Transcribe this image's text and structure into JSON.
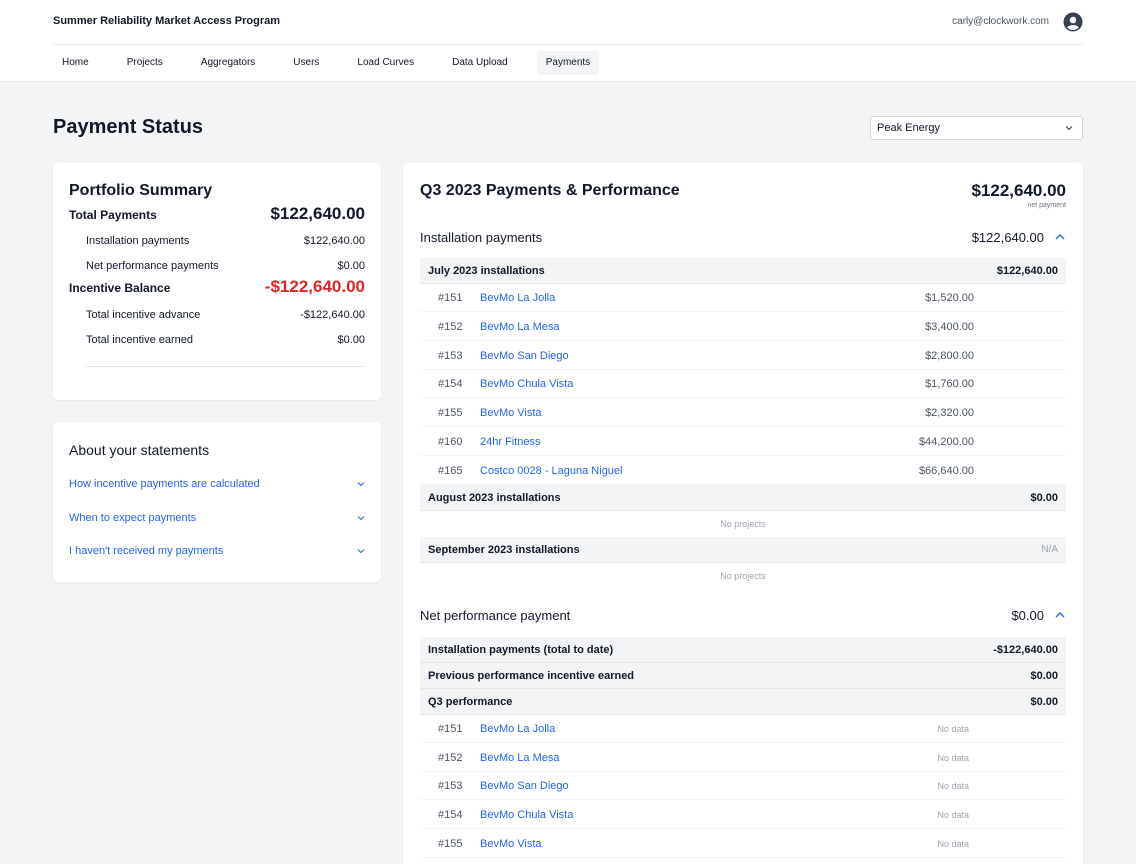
{
  "header": {
    "app_title": "Summer Reliability Market Access Program",
    "user_email": "carly@clockwork.com",
    "nav": [
      "Home",
      "Projects",
      "Aggregators",
      "Users",
      "Load Curves",
      "Data Upload",
      "Payments"
    ],
    "active_nav": "Payments"
  },
  "page": {
    "title": "Payment Status",
    "aggregator_select": "Peak Energy"
  },
  "portfolio": {
    "title": "Portfolio Summary",
    "total_payments_label": "Total Payments",
    "total_payments_value": "$122,640.00",
    "installation_label": "Installation payments",
    "installation_value": "$122,640.00",
    "net_perf_label": "Net performance payments",
    "net_perf_value": "$0.00",
    "incentive_balance_label": "Incentive Balance",
    "incentive_balance_value": "-$122,640.00",
    "advance_label": "Total incentive advance",
    "advance_value": "-$122,640.00",
    "earned_label": "Total incentive earned",
    "earned_value": "$0.00"
  },
  "about": {
    "title": "About your statements",
    "questions": [
      "How incentive payments are calculated",
      "When to expect payments",
      "I haven't received my payments"
    ]
  },
  "main": {
    "title": "Q3 2023 Payments & Performance",
    "net_total": "$122,640.00",
    "net_total_caption": "net payment",
    "installation": {
      "title": "Installation payments",
      "total": "$122,640.00",
      "groups": [
        {
          "label": "July 2023 installations",
          "value": "$122,640.00",
          "items": [
            {
              "num": "#151",
              "name": "BevMo La Jolla",
              "amount": "$1,520.00"
            },
            {
              "num": "#152",
              "name": "BevMo La Mesa",
              "amount": "$3,400.00"
            },
            {
              "num": "#153",
              "name": "BevMo San Diego",
              "amount": "$2,800.00"
            },
            {
              "num": "#154",
              "name": "BevMo Chula Vista",
              "amount": "$1,760.00"
            },
            {
              "num": "#155",
              "name": "BevMo Vista",
              "amount": "$2,320.00"
            },
            {
              "num": "#160",
              "name": "24hr Fitness",
              "amount": "$44,200.00"
            },
            {
              "num": "#165",
              "name": "Costco 0028 - Laguna Niguel",
              "amount": "$66,640.00"
            }
          ]
        },
        {
          "label": "August 2023 installations",
          "value": "$0.00",
          "empty": "No projects"
        },
        {
          "label": "September 2023 installations",
          "value": "N/A",
          "empty": "No projects"
        }
      ]
    },
    "performance": {
      "title": "Net performance payment",
      "total": "$0.00",
      "rows": [
        {
          "label": "Installation payments (total to date)",
          "value": "-$122,640.00"
        },
        {
          "label": "Previous performance incentive earned",
          "value": "$0.00"
        },
        {
          "label": "Q3 performance",
          "value": "$0.00"
        }
      ],
      "items": [
        {
          "num": "#151",
          "name": "BevMo La Jolla",
          "status": "No data"
        },
        {
          "num": "#152",
          "name": "BevMo La Mesa",
          "status": "No data"
        },
        {
          "num": "#153",
          "name": "BevMo San Diego",
          "status": "No data"
        },
        {
          "num": "#154",
          "name": "BevMo Chula Vista",
          "status": "No data"
        },
        {
          "num": "#155",
          "name": "BevMo Vista",
          "status": "No data"
        }
      ]
    }
  },
  "colors": {
    "link": "#2563eb",
    "negative": "#dc2626",
    "background": "#f3f4f6"
  }
}
